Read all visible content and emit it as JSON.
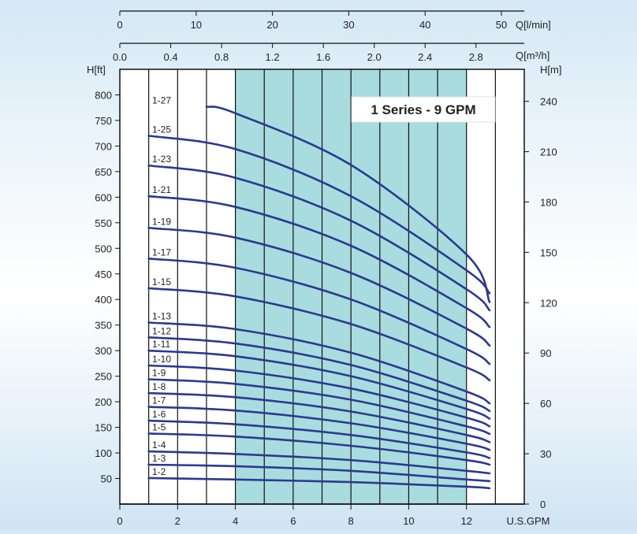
{
  "chart_data": {
    "type": "line",
    "title": "1 Series - 9 GPM",
    "x_bottom": {
      "label": "U.S.GPM",
      "min": 0,
      "max": 14,
      "ticks": [
        0,
        2,
        4,
        6,
        8,
        10,
        12
      ]
    },
    "x_top_lmin": {
      "label": "Q[l/min]",
      "ticks": [
        0,
        10,
        20,
        30,
        40,
        50
      ]
    },
    "x_top_m3h": {
      "label": "Q[m³/h]",
      "ticks": [
        0,
        0.4,
        0.8,
        1.2,
        1.6,
        2.0,
        2.4,
        2.8
      ]
    },
    "y_left": {
      "label": "H[ft]",
      "min": 0,
      "max": 850,
      "ticks": [
        50,
        100,
        150,
        200,
        250,
        300,
        350,
        400,
        450,
        500,
        550,
        600,
        650,
        700,
        750,
        800
      ]
    },
    "y_right": {
      "label": "H[m]",
      "ticks": [
        0,
        30,
        60,
        90,
        120,
        150,
        180,
        210,
        240
      ]
    },
    "shaded_range": [
      4,
      12
    ],
    "grid": true,
    "series": [
      {
        "name": "1-2",
        "points": [
          [
            1,
            51
          ],
          [
            4,
            48
          ],
          [
            8,
            43
          ],
          [
            12,
            34
          ],
          [
            12.8,
            31
          ]
        ]
      },
      {
        "name": "1-3",
        "points": [
          [
            1,
            77
          ],
          [
            4,
            74
          ],
          [
            8,
            65
          ],
          [
            12,
            48
          ],
          [
            12.8,
            45
          ]
        ]
      },
      {
        "name": "1-4",
        "points": [
          [
            1,
            103
          ],
          [
            4,
            98
          ],
          [
            8,
            86
          ],
          [
            12,
            65
          ],
          [
            12.8,
            60
          ]
        ]
      },
      {
        "name": "1-5",
        "points": [
          [
            1,
            138
          ],
          [
            4,
            132
          ],
          [
            8,
            114
          ],
          [
            12,
            86
          ],
          [
            12.8,
            77
          ]
        ]
      },
      {
        "name": "1-6",
        "points": [
          [
            1,
            163
          ],
          [
            4,
            156
          ],
          [
            8,
            135
          ],
          [
            12,
            101
          ],
          [
            12.8,
            90
          ]
        ]
      },
      {
        "name": "1-7",
        "points": [
          [
            1,
            190
          ],
          [
            4,
            183
          ],
          [
            8,
            158
          ],
          [
            12,
            118
          ],
          [
            12.8,
            106
          ]
        ]
      },
      {
        "name": "1-8",
        "points": [
          [
            1,
            217
          ],
          [
            4,
            209
          ],
          [
            8,
            181
          ],
          [
            12,
            135
          ],
          [
            12.8,
            121
          ]
        ]
      },
      {
        "name": "1-9",
        "points": [
          [
            1,
            244
          ],
          [
            4,
            235
          ],
          [
            8,
            204
          ],
          [
            12,
            152
          ],
          [
            12.8,
            137
          ]
        ]
      },
      {
        "name": "1-10",
        "points": [
          [
            1,
            271
          ],
          [
            4,
            261
          ],
          [
            8,
            226
          ],
          [
            12,
            169
          ],
          [
            12.8,
            152
          ]
        ]
      },
      {
        "name": "1-11",
        "points": [
          [
            1,
            300
          ],
          [
            4,
            289
          ],
          [
            8,
            250
          ],
          [
            12,
            186
          ],
          [
            12.8,
            167
          ]
        ]
      },
      {
        "name": "1-12",
        "points": [
          [
            1,
            326
          ],
          [
            4,
            314
          ],
          [
            8,
            272
          ],
          [
            12,
            202
          ],
          [
            12.8,
            182
          ]
        ]
      },
      {
        "name": "1-13",
        "points": [
          [
            1,
            355
          ],
          [
            4,
            342
          ],
          [
            8,
            296
          ],
          [
            12,
            220
          ],
          [
            12.8,
            197
          ]
        ]
      },
      {
        "name": "1-15",
        "points": [
          [
            1,
            422
          ],
          [
            4,
            406
          ],
          [
            8,
            352
          ],
          [
            12,
            267
          ],
          [
            12.8,
            242
          ]
        ]
      },
      {
        "name": "1-17",
        "points": [
          [
            1,
            480
          ],
          [
            4,
            462
          ],
          [
            8,
            400
          ],
          [
            12,
            303
          ],
          [
            12.8,
            274
          ]
        ]
      },
      {
        "name": "1-19",
        "points": [
          [
            1,
            540
          ],
          [
            4,
            521
          ],
          [
            8,
            452
          ],
          [
            12,
            343
          ],
          [
            12.8,
            310
          ]
        ]
      },
      {
        "name": "1-21",
        "points": [
          [
            1,
            602
          ],
          [
            4,
            581
          ],
          [
            8,
            505
          ],
          [
            12,
            383
          ],
          [
            12.8,
            346
          ]
        ]
      },
      {
        "name": "1-23",
        "points": [
          [
            1,
            662
          ],
          [
            4,
            638
          ],
          [
            8,
            554
          ],
          [
            12,
            420
          ],
          [
            12.8,
            379
          ]
        ]
      },
      {
        "name": "1-25",
        "points": [
          [
            1,
            720
          ],
          [
            4,
            694
          ],
          [
            8,
            602
          ],
          [
            12,
            457
          ],
          [
            12.8,
            412
          ]
        ]
      },
      {
        "name": "1-27",
        "points": [
          [
            3,
            777
          ],
          [
            4,
            764
          ],
          [
            8,
            663
          ],
          [
            12,
            488
          ],
          [
            12.8,
            395
          ]
        ]
      }
    ]
  }
}
